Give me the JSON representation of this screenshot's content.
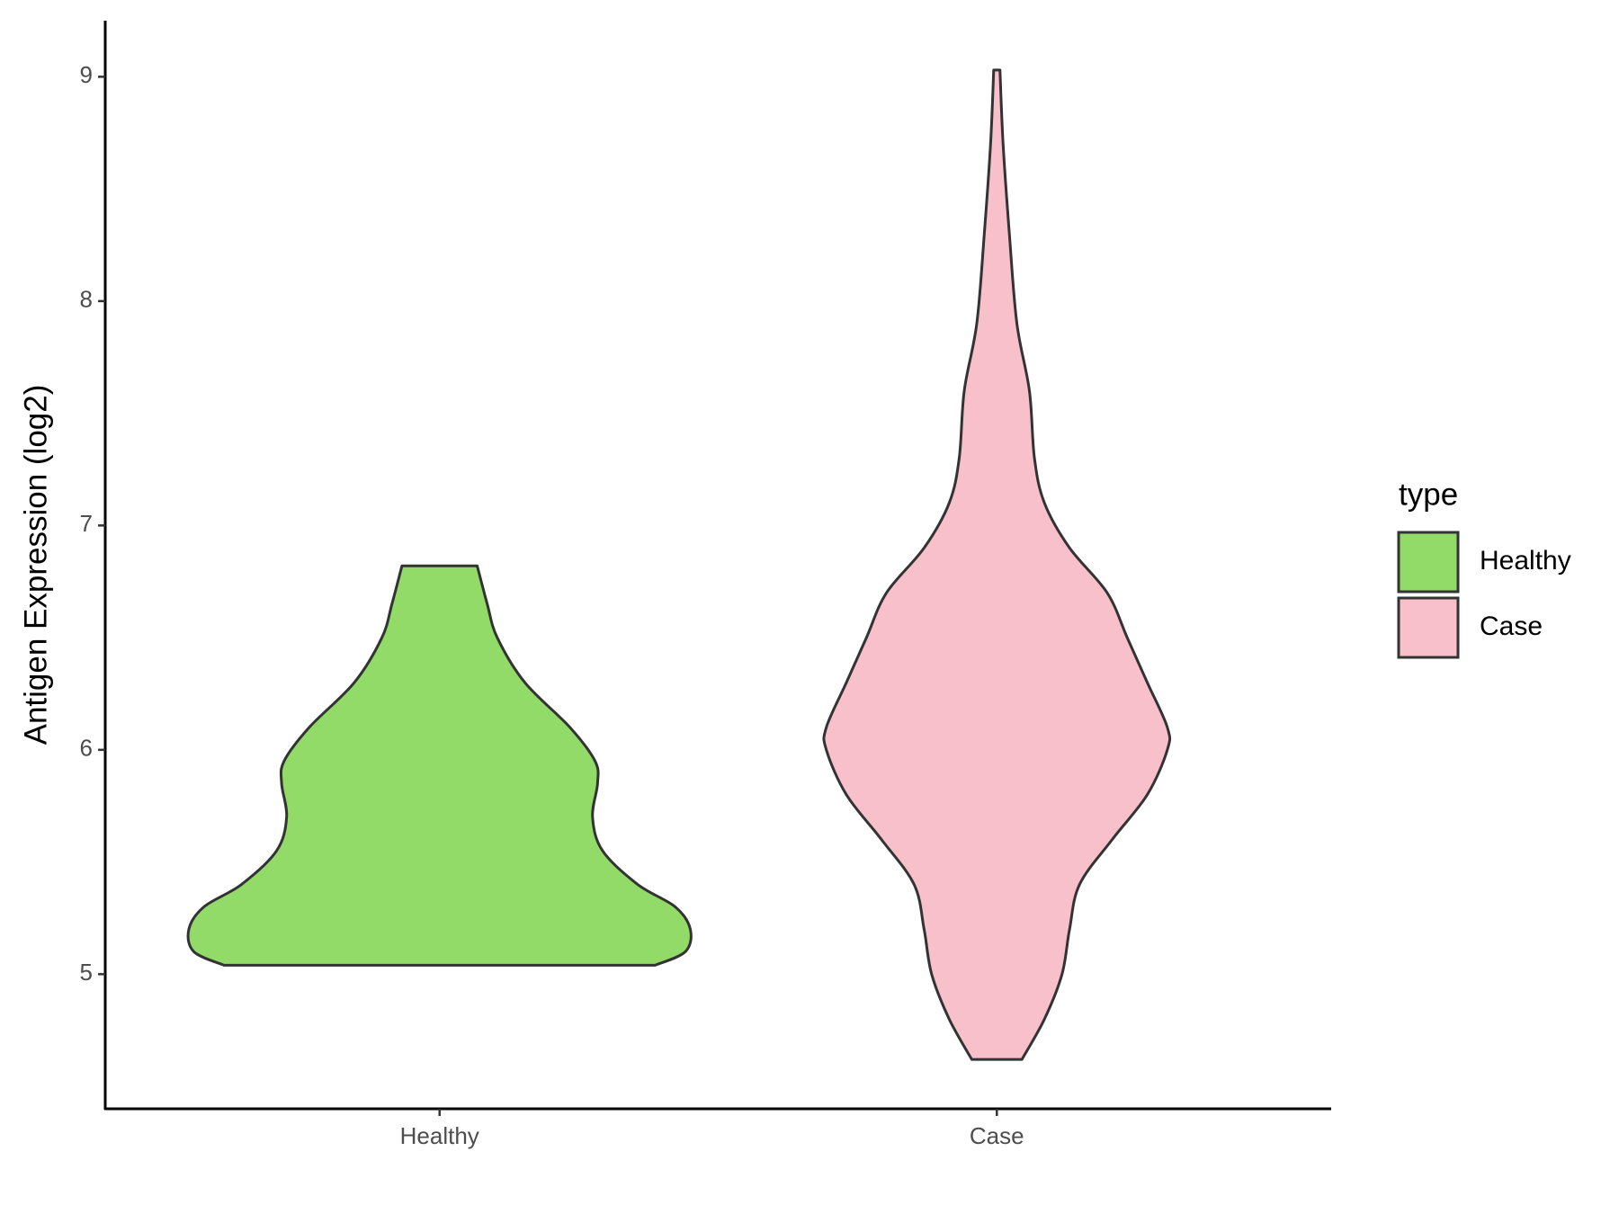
{
  "chart_data": {
    "type": "violin",
    "y_label": "Antigen Expression (log2)",
    "categories": [
      "Healthy",
      "Case"
    ],
    "legend_title": "type",
    "legend_position": "right",
    "ylim": [
      4.4,
      9.25
    ],
    "yticks": [
      5,
      6,
      7,
      8,
      9
    ],
    "series": [
      {
        "name": "Healthy",
        "color": "#93DB69",
        "y": [
          5.04,
          5.1,
          5.2,
          5.3,
          5.4,
          5.55,
          5.7,
          5.85,
          5.95,
          6.1,
          6.3,
          6.5,
          6.65,
          6.82
        ],
        "density": [
          0.86,
          0.98,
          1.0,
          0.94,
          0.79,
          0.65,
          0.61,
          0.63,
          0.62,
          0.52,
          0.34,
          0.23,
          0.19,
          0.15
        ]
      },
      {
        "name": "Case",
        "color": "#F8C0CB",
        "y": [
          4.62,
          4.8,
          5.0,
          5.2,
          5.4,
          5.6,
          5.8,
          6.0,
          6.1,
          6.3,
          6.5,
          6.7,
          6.9,
          7.1,
          7.3,
          7.6,
          7.9,
          8.3,
          8.7,
          9.03
        ],
        "density": [
          0.1,
          0.19,
          0.26,
          0.29,
          0.33,
          0.46,
          0.6,
          0.68,
          0.68,
          0.6,
          0.52,
          0.44,
          0.29,
          0.19,
          0.15,
          0.13,
          0.08,
          0.05,
          0.025,
          0.0125
        ]
      }
    ]
  }
}
